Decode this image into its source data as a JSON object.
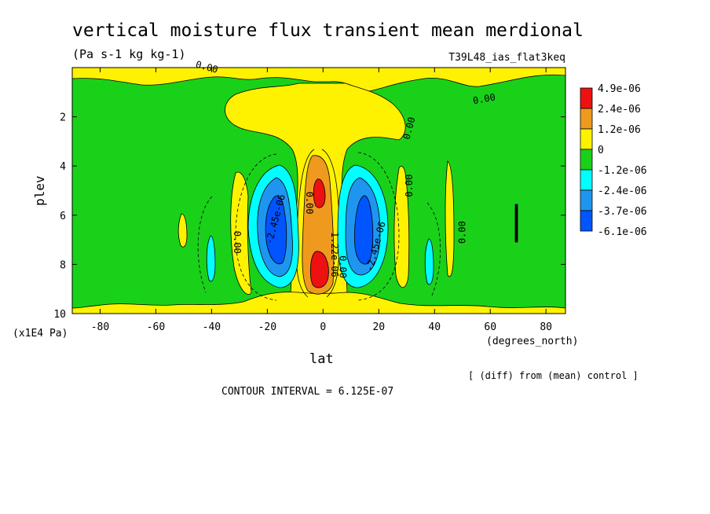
{
  "chart_data": {
    "type": "heatmap",
    "subtype": "filled-contour",
    "title": "vertical moisture flux transient mean merdional",
    "units": "(Pa s-1 kg kg-1)",
    "run_label": "T39L48_ias_flat3keq",
    "xlabel": "lat",
    "x_units": "(degrees_north)",
    "ylabel": "plev",
    "y_units": "(x1E4 Pa)",
    "xlim": [
      -90,
      87
    ],
    "ylim": [
      0,
      10
    ],
    "y_inverted": true,
    "x_ticks": [
      "-80",
      "-60",
      "-40",
      "-20",
      "0",
      "20",
      "40",
      "60",
      "80"
    ],
    "y_ticks": [
      "2",
      "4",
      "6",
      "8",
      "10"
    ],
    "legend": {
      "placement": "right",
      "labels": [
        "4.9e-06",
        "2.4e-06",
        "1.2e-06",
        "0",
        "-1.2e-06",
        "-2.4e-06",
        "-3.7e-06",
        "-6.1e-06"
      ],
      "colors": [
        "#ee1111",
        "#ef9a1e",
        "#fff200",
        "#1ad11a",
        "#00ffff",
        "#1e96f0",
        "#0055ff"
      ]
    },
    "contour_labels": [
      {
        "text": "0.00",
        "lat": -42,
        "plev": 0.1,
        "angle": 15
      },
      {
        "text": "0.00",
        "lat": 58,
        "plev": 1.4,
        "angle": -10
      },
      {
        "text": "0.00",
        "lat": 32,
        "plev": 2.5,
        "angle": -75
      },
      {
        "text": "0.00",
        "lat": 32,
        "plev": 4.8,
        "angle": -90
      },
      {
        "text": "0.00",
        "lat": 51,
        "plev": 6.7,
        "angle": -90
      },
      {
        "text": "0.00",
        "lat": -32,
        "plev": 7.1,
        "angle": 90
      },
      {
        "text": "0.00",
        "lat": -6,
        "plev": 5.5,
        "angle": 90
      },
      {
        "text": "0.00",
        "lat": 6,
        "plev": 8.1,
        "angle": 90
      },
      {
        "text": "-2.45e-06",
        "lat": -16,
        "plev": 6.2,
        "angle": -75
      },
      {
        "text": "-2.45e-06",
        "lat": 20,
        "plev": 7.3,
        "angle": -75
      },
      {
        "text": "1.22e-06",
        "lat": 3,
        "plev": 7.6,
        "angle": 90
      }
    ],
    "contour_interval_note": "CONTOUR INTERVAL = 6.125E-07",
    "diff_note": "[ (diff) from (mean) control ]"
  },
  "colors": {
    "zero_band": "#fff200",
    "background_field": "#1ad11a"
  }
}
